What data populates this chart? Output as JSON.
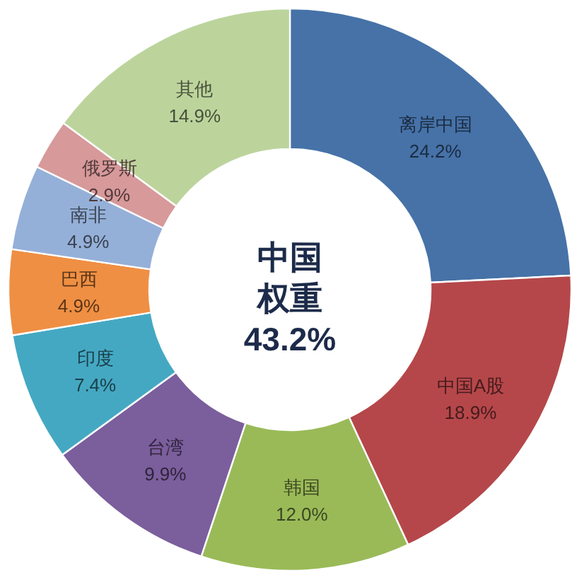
{
  "chart_data": {
    "type": "donut",
    "categories": [
      "离岸中国",
      "中国A股",
      "韩国",
      "台湾",
      "印度",
      "巴西",
      "南非",
      "俄罗斯",
      "其他"
    ],
    "values": [
      24.2,
      18.9,
      12.0,
      9.9,
      7.4,
      4.9,
      4.9,
      2.9,
      14.9
    ],
    "value_labels": [
      "24.2%",
      "18.9%",
      "12.0%",
      "9.9%",
      "7.4%",
      "4.9%",
      "4.9%",
      "2.9%",
      "14.9%"
    ],
    "colors": [
      "#4672a8",
      "#b5474a",
      "#9aba58",
      "#7b5e9c",
      "#45a8c2",
      "#ef8f43",
      "#95b0d8",
      "#d7999a",
      "#bcd49c"
    ],
    "annotations": [
      "中国",
      "权重",
      "43.2%"
    ]
  }
}
